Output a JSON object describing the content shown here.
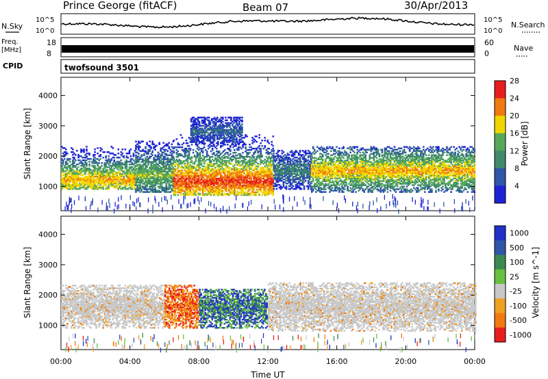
{
  "header": {
    "station": "Prince George (fitACF)",
    "beam": "Beam 07",
    "date": "30/Apr/2013"
  },
  "param_panels": {
    "nsky_label": "N.Sky",
    "nsky_ticks": [
      "10^5",
      "10^0"
    ],
    "nsearch_label": "N.Search",
    "nsearch_ticks": [
      "10^5",
      "10^0"
    ],
    "freq_label_1": "Freq.",
    "freq_label_2": "[MHz]",
    "freq_ticks": [
      "18",
      "8"
    ],
    "nave_label": "Nave",
    "nave_ticks": [
      "60",
      "0"
    ],
    "cpid_label": "CPID",
    "cpid_value": "twofsound 3501"
  },
  "chart_data": [
    {
      "type": "heatmap",
      "name": "power",
      "ylabel": "Slant Range [km]",
      "yticks": [
        1000,
        2000,
        3000,
        4000
      ],
      "ylim": [
        200,
        4600
      ],
      "xlim": [
        "00:00",
        "24:00"
      ],
      "colorbar": {
        "label": "Power [dB]",
        "ticks": [
          "4",
          "8",
          "12",
          "16",
          "20",
          "24",
          "28"
        ],
        "colors": [
          "#1e22d6",
          "#2f56a8",
          "#3f8a6a",
          "#56a85a",
          "#f0d600",
          "#f07a10",
          "#e81e1e"
        ],
        "range": [
          0,
          30
        ]
      },
      "scatter_bands": [
        {
          "t0": 0.0,
          "t1": 4.3,
          "r0": 900,
          "r1": 2300,
          "peak": 1200,
          "level": 22
        },
        {
          "t0": 4.3,
          "t1": 6.5,
          "r0": 800,
          "r1": 2500,
          "peak": 1350,
          "level": 16
        },
        {
          "t0": 6.5,
          "t1": 12.3,
          "r0": 700,
          "r1": 2700,
          "peak": 1150,
          "level": 27
        },
        {
          "t0": 7.5,
          "t1": 10.5,
          "r0": 2400,
          "r1": 3300,
          "peak": 2800,
          "level": 8
        },
        {
          "t0": 12.3,
          "t1": 14.5,
          "r0": 900,
          "r1": 2200,
          "peak": 1500,
          "level": 10
        },
        {
          "t0": 14.5,
          "t1": 24.0,
          "r0": 800,
          "r1": 2300,
          "peak": 1500,
          "level": 22
        }
      ]
    },
    {
      "type": "heatmap",
      "name": "velocity",
      "ylabel": "Slant Range [km]",
      "yticks": [
        1000,
        2000,
        3000,
        4000
      ],
      "ylim": [
        200,
        4600
      ],
      "xlim": [
        "00:00",
        "24:00"
      ],
      "xticks": [
        "00:00",
        "04:00",
        "08:00",
        "12:00",
        "16:00",
        "20:00",
        "00:00"
      ],
      "xlabel": "Time UT",
      "colorbar": {
        "label": "Velocity [m s^-1]",
        "ticks": [
          "1000",
          "500",
          "100",
          "25",
          "-25",
          "-100",
          "-500",
          "-1000"
        ],
        "colors": [
          "#2030c8",
          "#2f56a8",
          "#3c8a50",
          "#68c040",
          "#c8c8c8",
          "#f0a020",
          "#f07a10",
          "#e81e1e"
        ]
      },
      "scatter_bands": [
        {
          "t0": 0.0,
          "t1": 6.0,
          "r0": 900,
          "r1": 2300,
          "kind": "ground"
        },
        {
          "t0": 6.0,
          "t1": 8.0,
          "r0": 900,
          "r1": 2300,
          "kind": "negative"
        },
        {
          "t0": 8.0,
          "t1": 12.0,
          "r0": 900,
          "r1": 2200,
          "kind": "positive"
        },
        {
          "t0": 12.0,
          "t1": 24.0,
          "r0": 800,
          "r1": 2400,
          "kind": "ground"
        }
      ]
    }
  ],
  "colors": {
    "ground": "#c8c8c8"
  }
}
